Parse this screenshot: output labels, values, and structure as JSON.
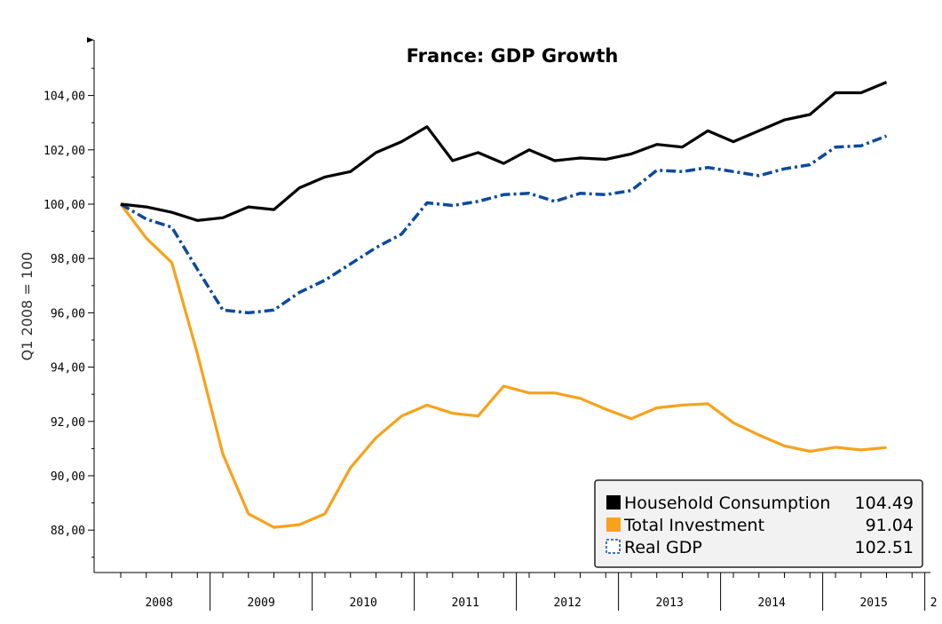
{
  "chart_data": {
    "type": "line",
    "title": "France: GDP Growth",
    "xlabel": "",
    "ylabel": "Q1 2008 = 100",
    "ylim": [
      86.5,
      106
    ],
    "yticks": [
      88,
      90,
      92,
      94,
      96,
      98,
      100,
      102,
      104
    ],
    "ytick_labels": [
      "88,00",
      "90,00",
      "92,00",
      "94,00",
      "96,00",
      "98,00",
      "100,00",
      "102,00",
      "104,00"
    ],
    "x_year_labels": [
      "2008",
      "2009",
      "2010",
      "2011",
      "2012",
      "2013",
      "2014",
      "2015",
      "2"
    ],
    "x_start": "2008-Q1",
    "x_frequency": "quarterly",
    "series": [
      {
        "name": "Household Consumption",
        "last_value_label": "104.49",
        "color": "#000000",
        "style": "solid",
        "values": [
          100.0,
          99.9,
          99.7,
          99.4,
          99.5,
          99.9,
          99.8,
          100.6,
          101.0,
          101.2,
          101.9,
          102.3,
          102.85,
          101.6,
          101.9,
          101.5,
          102.0,
          101.6,
          101.7,
          101.65,
          101.85,
          102.2,
          102.1,
          102.7,
          102.3,
          102.7,
          103.1,
          103.3,
          104.1,
          104.1,
          104.49
        ]
      },
      {
        "name": "Total Investment",
        "last_value_label": "91.04",
        "color": "#f7a21b",
        "style": "solid",
        "values": [
          100.0,
          98.75,
          97.85,
          94.5,
          90.8,
          88.6,
          88.1,
          88.2,
          88.6,
          90.3,
          91.4,
          92.2,
          92.6,
          92.3,
          92.2,
          93.3,
          93.05,
          93.05,
          92.85,
          92.45,
          92.1,
          92.5,
          92.6,
          92.65,
          91.95,
          91.5,
          91.1,
          90.9,
          91.05,
          90.95,
          91.04
        ]
      },
      {
        "name": "Real GDP",
        "last_value_label": "102.51",
        "color": "#0a4a9e",
        "style": "dashdot",
        "values": [
          100.0,
          99.45,
          99.15,
          97.6,
          96.1,
          96.0,
          96.1,
          96.75,
          97.2,
          97.8,
          98.4,
          98.9,
          100.05,
          99.95,
          100.1,
          100.35,
          100.4,
          100.1,
          100.4,
          100.35,
          100.5,
          101.25,
          101.2,
          101.35,
          101.2,
          101.05,
          101.3,
          101.45,
          102.1,
          102.15,
          102.51
        ]
      }
    ],
    "legend_position": "bottom-right",
    "grid": false
  }
}
